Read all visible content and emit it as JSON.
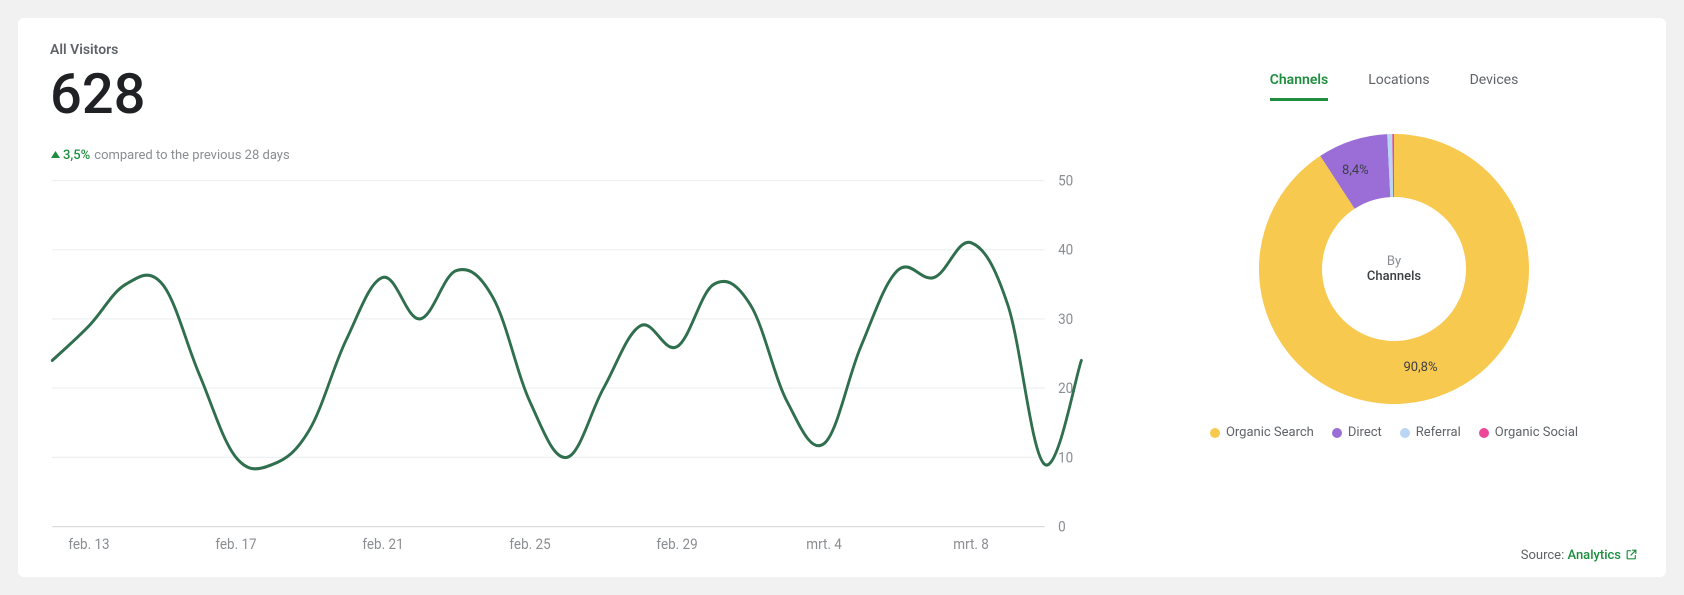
{
  "card": {
    "title": "All Visitors",
    "total": "628",
    "delta": {
      "direction": "up",
      "value": "3,5%",
      "note": "compared to the previous 28 days",
      "color": "#1e8e3e"
    }
  },
  "line_chart": {
    "type": "line",
    "series_color": "#2f6f4e",
    "background_color": "#ffffff",
    "grid_color": "#eef0f2",
    "axis_color": "#d9dbde",
    "line_width": 2.5,
    "xlim": [
      0,
      27
    ],
    "ylim": [
      0,
      50
    ],
    "ytick_step": 10,
    "yticks": [
      0,
      10,
      20,
      30,
      40,
      50
    ],
    "xtick_positions": [
      1,
      5,
      9,
      13,
      17,
      21,
      25
    ],
    "xtick_labels": [
      "feb. 13",
      "feb. 17",
      "feb. 21",
      "feb. 25",
      "feb. 29",
      "mrt. 4",
      "mrt. 8"
    ],
    "label_fontsize": 12,
    "label_color": "#8a8d91",
    "values": [
      24,
      29,
      35,
      35,
      22,
      10,
      9,
      14,
      27,
      36,
      30,
      37,
      33,
      18,
      10,
      20,
      29,
      26,
      35,
      32,
      18,
      12,
      26,
      37,
      36,
      41,
      32,
      9,
      24
    ]
  },
  "tabs": {
    "items": [
      {
        "id": "channels",
        "label": "Channels",
        "active": true
      },
      {
        "id": "locations",
        "label": "Locations",
        "active": false
      },
      {
        "id": "devices",
        "label": "Devices",
        "active": false
      }
    ],
    "active_color": "#1e8e3e",
    "inactive_color": "#5f6368"
  },
  "donut": {
    "type": "donut",
    "center_by": "By",
    "center_what": "Channels",
    "inner_radius": 72,
    "outer_radius": 135,
    "background_color": "#ffffff",
    "label_fontsize": 13,
    "label_color": "#3c4043",
    "slices": [
      {
        "name": "Organic Search",
        "value": 90.8,
        "label": "90,8%",
        "color": "#f8c94f",
        "show_label": true
      },
      {
        "name": "Direct",
        "value": 8.4,
        "label": "8,4%",
        "color": "#9b6dd7",
        "show_label": true
      },
      {
        "name": "Referral",
        "value": 0.6,
        "label": "",
        "color": "#b9d7f4",
        "show_label": false
      },
      {
        "name": "Organic Social",
        "value": 0.2,
        "label": "",
        "color": "#ec4899",
        "show_label": false
      }
    ]
  },
  "legend": {
    "items": [
      {
        "label": "Organic Search",
        "color": "#f8c94f"
      },
      {
        "label": "Direct",
        "color": "#9b6dd7"
      },
      {
        "label": "Referral",
        "color": "#b9d7f4"
      },
      {
        "label": "Organic Social",
        "color": "#ec4899"
      }
    ]
  },
  "source": {
    "prefix": "Source: ",
    "link_text": "Analytics",
    "link_color": "#1e8e3e"
  }
}
